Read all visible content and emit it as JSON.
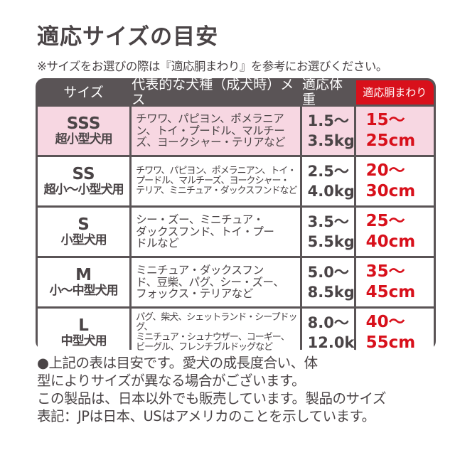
{
  "title": "適応サイズの目安",
  "subtitle": "※サイズをお選びの際は『適応胴まわり』を参考にお選びください。",
  "table": {
    "headers": [
      "サイズ",
      "代表的な犬種（成犬時）メス",
      "適応体重",
      "適応胴まわり"
    ],
    "rows": [
      {
        "size": "SSS",
        "use": "超小型犬用",
        "breeds": "チワワ、パピヨン、ポメラニア\nン、トイ・プードル、マルチー\nズ、ヨークシャー・テリアなど",
        "weight_min": "1.5〜",
        "weight_max": "3.5kg",
        "girth_min": "15〜",
        "girth_max": "25cm"
      },
      {
        "size": "SS",
        "use": "超小〜小型犬用",
        "breeds": "チワワ、パピヨン、ポメラニアン、トイ・\nプードル、マルチーズ、ヨークシャー・\nテリア、ミニチュア・ダックスフンドなど",
        "weight_min": "2.5〜",
        "weight_max": "4.0kg",
        "girth_min": "20〜",
        "girth_max": "30cm"
      },
      {
        "size": "S",
        "use": "小型犬用",
        "breeds": "シー・ズー、ミニチュア・\nダックスフンド、トイ・プー\nドルなど",
        "weight_min": "3.5〜",
        "weight_max": "5.5kg",
        "girth_min": "25〜",
        "girth_max": "40cm"
      },
      {
        "size": "M",
        "use": "小〜中型犬用",
        "breeds": "ミニチュア・ダックスフン\nド、豆柴、パグ、シー・ズー、\nフォックス・テリアなど",
        "weight_min": "5.0〜",
        "weight_max": "8.5kg",
        "girth_min": "35〜",
        "girth_max": "45cm"
      },
      {
        "size": "L",
        "use": "中型犬用",
        "breeds": "パグ、柴犬、シェットランド・シープドッグ、\nミニチュア・シュナウザー、コーギー、\nビーグル、フレンチブルドッグなど",
        "weight_min": "8.0〜",
        "weight_max": "12.0kg",
        "girth_min": "40〜",
        "girth_max": "55cm"
      }
    ]
  },
  "notes": [
    "●上記の表は目安です。愛犬の成長度合い、体",
    "型によりサイズが異なる場合がございます。",
    "この製品は、日本以外でも販売しています。製品のサイズ",
    "表記：JPは日本、USはアメリカのことを示しています。"
  ],
  "colors": {
    "accent": "#d8101b",
    "dark": "#5a5456",
    "pink": "#f7d7e2"
  }
}
